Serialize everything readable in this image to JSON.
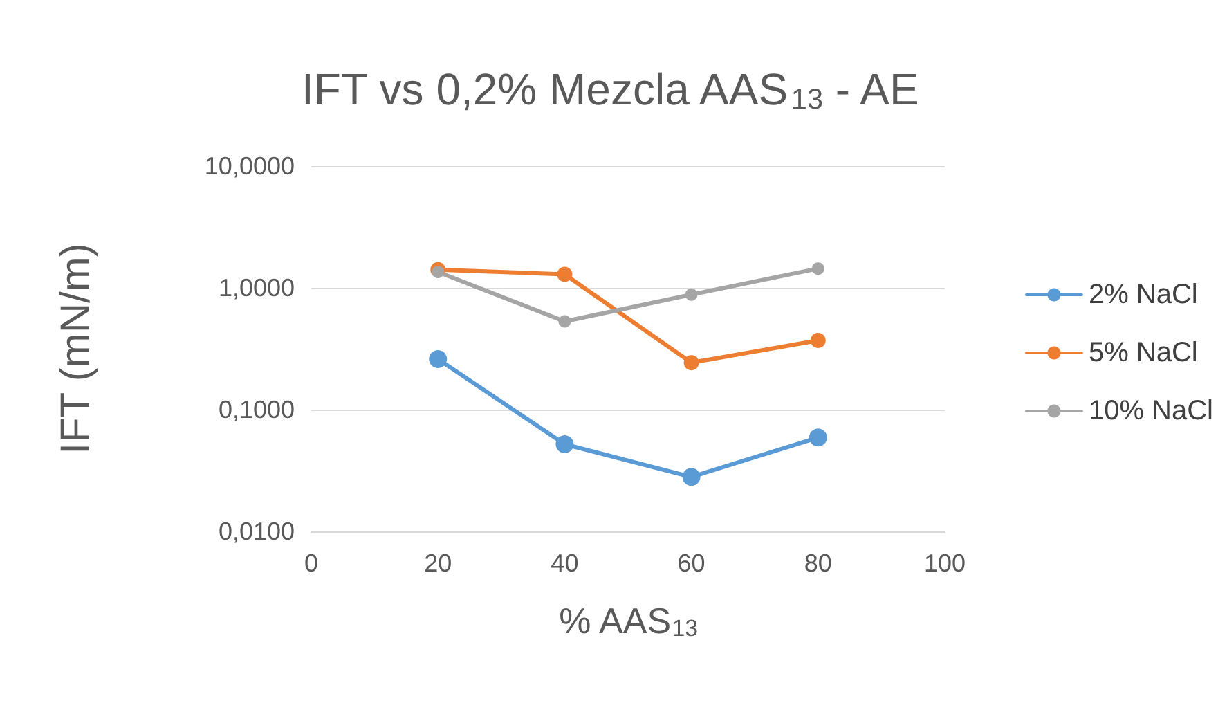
{
  "chart_data": {
    "type": "line",
    "title": "IFT vs 0,2% Mezcla AAS$_{13}$ - AE",
    "xlabel": "% AAS$_{13}$",
    "ylabel": "IFT (mN/m)",
    "x": [
      20,
      40,
      60,
      80
    ],
    "series": [
      {
        "name": "2% NaCl",
        "color": "#5b9bd5",
        "values": [
          0.26,
          0.052,
          0.028,
          0.059
        ]
      },
      {
        "name": "5% NaCl",
        "color": "#ed7d31",
        "values": [
          1.41,
          1.29,
          0.243,
          0.37
        ]
      },
      {
        "name": "10% NaCl",
        "color": "#a5a5a5",
        "values": [
          1.35,
          0.53,
          0.88,
          1.44
        ]
      }
    ],
    "xlim": [
      0,
      100
    ],
    "xticks": [
      0,
      20,
      40,
      60,
      80,
      100
    ],
    "ylim": [
      0.01,
      10
    ],
    "yticks": [
      {
        "value": 0.01,
        "label": "0,0100"
      },
      {
        "value": 0.1,
        "label": "0,1000"
      },
      {
        "value": 1,
        "label": "1,0000"
      },
      {
        "value": 10,
        "label": "10,0000"
      }
    ],
    "log": "y",
    "grid": "y",
    "legend": "right",
    "marker": "circle",
    "line_style": "solid"
  }
}
